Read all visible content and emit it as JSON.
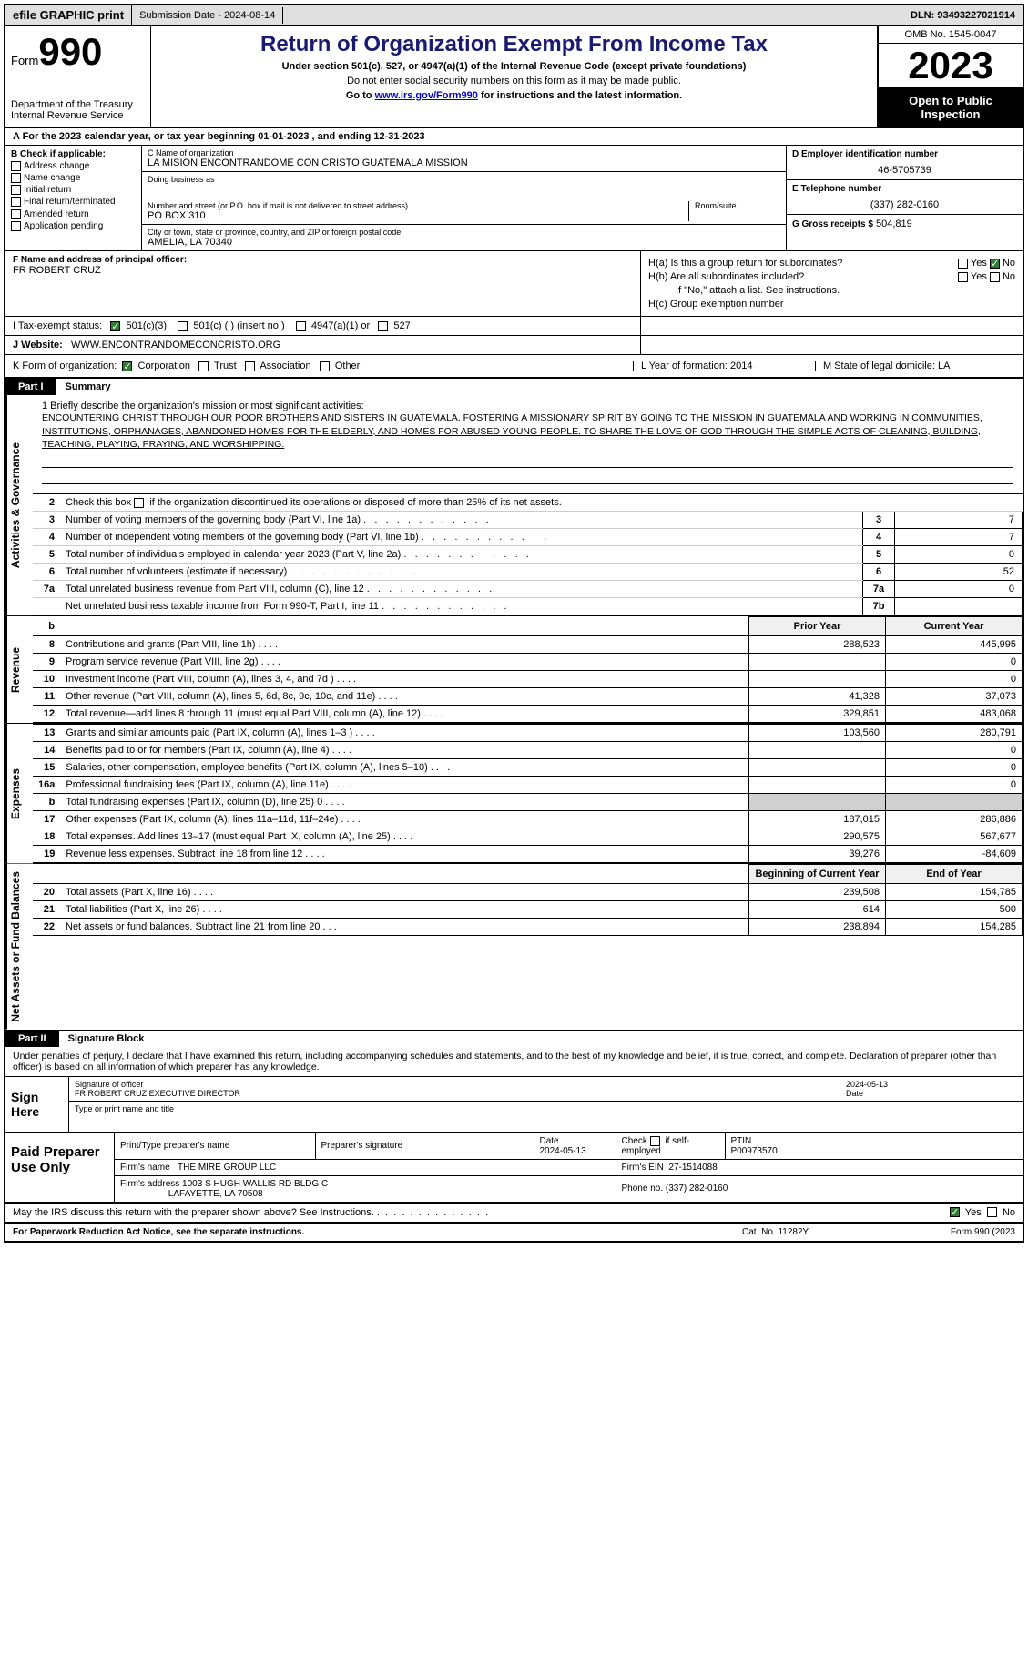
{
  "top_bar": {
    "efile": "efile GRAPHIC print",
    "submission": "Submission Date - 2024-08-14",
    "dln": "DLN: 93493227021914"
  },
  "header": {
    "form_word": "Form",
    "form_num": "990",
    "dept": "Department of the Treasury Internal Revenue Service",
    "title": "Return of Organization Exempt From Income Tax",
    "subtitle": "Under section 501(c), 527, or 4947(a)(1) of the Internal Revenue Code (except private foundations)",
    "subtitle2": "Do not enter social security numbers on this form as it may be made public.",
    "goto": "Go to www.irs.gov/Form990 for instructions and the latest information.",
    "goto_link": "www.irs.gov/Form990",
    "omb": "OMB No. 1545-0047",
    "year": "2023",
    "inspection": "Open to Public Inspection"
  },
  "line_a": "A For the 2023 calendar year, or tax year beginning 01-01-2023   , and ending 12-31-2023",
  "col_b": {
    "label": "B Check if applicable:",
    "opts": [
      "Address change",
      "Name change",
      "Initial return",
      "Final return/terminated",
      "Amended return",
      "Application pending"
    ]
  },
  "col_c": {
    "name_label": "C Name of organization",
    "name": "LA MISION ENCONTRANDOME CON CRISTO GUATEMALA MISSION",
    "dba_label": "Doing business as",
    "addr_label": "Number and street (or P.O. box if mail is not delivered to street address)",
    "addr": "PO BOX 310",
    "room_label": "Room/suite",
    "city_label": "City or town, state or province, country, and ZIP or foreign postal code",
    "city": "AMELIA, LA   70340"
  },
  "col_d": {
    "ein_label": "D Employer identification number",
    "ein": "46-5705739",
    "phone_label": "E Telephone number",
    "phone": "(337) 282-0160",
    "gross_label": "G Gross receipts $",
    "gross": "504,819"
  },
  "fg": {
    "f_label": "F Name and address of principal officer:",
    "f_name": "FR ROBERT CRUZ",
    "ha": "H(a)  Is this a group return for subordinates?",
    "hb": "H(b)  Are all subordinates included?",
    "hb_note": "If \"No,\" attach a list. See instructions.",
    "hc": "H(c)  Group exemption number",
    "yes": "Yes",
    "no": "No"
  },
  "status": {
    "label": "I   Tax-exempt status:",
    "o1": "501(c)(3)",
    "o2": "501(c) (  ) (insert no.)",
    "o3": "4947(a)(1) or",
    "o4": "527"
  },
  "website": {
    "label": "J   Website:",
    "url": "WWW.ENCONTRANDOMECONCRISTO.ORG"
  },
  "k_row": {
    "label": "K Form of organization:",
    "opts": [
      "Corporation",
      "Trust",
      "Association",
      "Other"
    ],
    "l": "L Year of formation: 2014",
    "m": "M State of legal domicile: LA"
  },
  "part1": {
    "num": "Part I",
    "title": "Summary"
  },
  "mission": {
    "intro": "1   Briefly describe the organization's mission or most significant activities:",
    "text": "ENCOUNTERING CHRIST THROUGH OUR POOR BROTHERS AND SISTERS IN GUATEMALA. FOSTERING A MISSIONARY SPIRIT BY GOING TO THE MISSION IN GUATEMALA AND WORKING IN COMMUNITIES, INSTITUTIONS, ORPHANAGES, ABANDONED HOMES FOR THE ELDERLY, AND HOMES FOR ABUSED YOUNG PEOPLE. TO SHARE THE LOVE OF GOD THROUGH THE SIMPLE ACTS OF CLEANING, BUILDING, TEACHING, PLAYING, PRAYING, AND WORSHIPPING."
  },
  "side_labels": {
    "gov": "Activities & Governance",
    "rev": "Revenue",
    "exp": "Expenses",
    "net": "Net Assets or Fund Balances"
  },
  "gov_lines": {
    "l2": "Check this box        if the organization discontinued its operations or disposed of more than 25% of its net assets.",
    "l3": {
      "n": "3",
      "t": "Number of voting members of the governing body (Part VI, line 1a)",
      "b": "3",
      "v": "7"
    },
    "l4": {
      "n": "4",
      "t": "Number of independent voting members of the governing body (Part VI, line 1b)",
      "b": "4",
      "v": "7"
    },
    "l5": {
      "n": "5",
      "t": "Total number of individuals employed in calendar year 2023 (Part V, line 2a)",
      "b": "5",
      "v": "0"
    },
    "l6": {
      "n": "6",
      "t": "Total number of volunteers (estimate if necessary)",
      "b": "6",
      "v": "52"
    },
    "l7a": {
      "n": "7a",
      "t": "Total unrelated business revenue from Part VIII, column (C), line 12",
      "b": "7a",
      "v": "0"
    },
    "l7b": {
      "n": "",
      "t": "Net unrelated business taxable income from Form 990-T, Part I, line 11",
      "b": "7b",
      "v": ""
    }
  },
  "year_headers": {
    "b": "b",
    "prior": "Prior Year",
    "current": "Current Year"
  },
  "rev_lines": [
    {
      "n": "8",
      "t": "Contributions and grants (Part VIII, line 1h)",
      "p": "288,523",
      "c": "445,995"
    },
    {
      "n": "9",
      "t": "Program service revenue (Part VIII, line 2g)",
      "p": "",
      "c": "0"
    },
    {
      "n": "10",
      "t": "Investment income (Part VIII, column (A), lines 3, 4, and 7d )",
      "p": "",
      "c": "0"
    },
    {
      "n": "11",
      "t": "Other revenue (Part VIII, column (A), lines 5, 6d, 8c, 9c, 10c, and 11e)",
      "p": "41,328",
      "c": "37,073"
    },
    {
      "n": "12",
      "t": "Total revenue—add lines 8 through 11 (must equal Part VIII, column (A), line 12)",
      "p": "329,851",
      "c": "483,068"
    }
  ],
  "exp_lines": [
    {
      "n": "13",
      "t": "Grants and similar amounts paid (Part IX, column (A), lines 1–3 )",
      "p": "103,560",
      "c": "280,791"
    },
    {
      "n": "14",
      "t": "Benefits paid to or for members (Part IX, column (A), line 4)",
      "p": "",
      "c": "0"
    },
    {
      "n": "15",
      "t": "Salaries, other compensation, employee benefits (Part IX, column (A), lines 5–10)",
      "p": "",
      "c": "0"
    },
    {
      "n": "16a",
      "t": "Professional fundraising fees (Part IX, column (A), line 11e)",
      "p": "",
      "c": "0"
    },
    {
      "n": "b",
      "t": "Total fundraising expenses (Part IX, column (D), line 25) 0",
      "p": "SHADE",
      "c": "SHADE"
    },
    {
      "n": "17",
      "t": "Other expenses (Part IX, column (A), lines 11a–11d, 11f–24e)",
      "p": "187,015",
      "c": "286,886"
    },
    {
      "n": "18",
      "t": "Total expenses. Add lines 13–17 (must equal Part IX, column (A), line 25)",
      "p": "290,575",
      "c": "567,677"
    },
    {
      "n": "19",
      "t": "Revenue less expenses. Subtract line 18 from line 12",
      "p": "39,276",
      "c": "-84,609"
    }
  ],
  "net_headers": {
    "begin": "Beginning of Current Year",
    "end": "End of Year"
  },
  "net_lines": [
    {
      "n": "20",
      "t": "Total assets (Part X, line 16)",
      "p": "239,508",
      "c": "154,785"
    },
    {
      "n": "21",
      "t": "Total liabilities (Part X, line 26)",
      "p": "614",
      "c": "500"
    },
    {
      "n": "22",
      "t": "Net assets or fund balances. Subtract line 21 from line 20",
      "p": "238,894",
      "c": "154,285"
    }
  ],
  "part2": {
    "num": "Part II",
    "title": "Signature Block"
  },
  "penalty": "Under penalties of perjury, I declare that I have examined this return, including accompanying schedules and statements, and to the best of my knowledge and belief, it is true, correct, and complete. Declaration of preparer (other than officer) is based on all information of which preparer has any knowledge.",
  "sign": {
    "label": "Sign Here",
    "sig_label": "Signature of officer",
    "date_label": "Date",
    "date": "2024-05-13",
    "name": "FR ROBERT CRUZ  EXECUTIVE DIRECTOR",
    "name_label": "Type or print name and title"
  },
  "prep": {
    "label": "Paid Preparer Use Only",
    "h1": "Print/Type preparer's name",
    "h2": "Preparer's signature",
    "h3": "Date",
    "date": "2024-05-13",
    "h4": "Check        if self-employed",
    "h5": "PTIN",
    "ptin": "P00973570",
    "firm_label": "Firm's name",
    "firm": "THE MIRE GROUP LLC",
    "firm_ein_label": "Firm's EIN",
    "firm_ein": "27-1514088",
    "firm_addr_label": "Firm's address",
    "firm_addr": "1003 S HUGH WALLIS RD BLDG C",
    "firm_city": "LAFAYETTE, LA   70508",
    "phone_label": "Phone no.",
    "phone": "(337) 282-0160"
  },
  "discuss": "May the IRS discuss this return with the preparer shown above? See Instructions.",
  "footer": {
    "l": "For Paperwork Reduction Act Notice, see the separate instructions.",
    "m": "Cat. No. 11282Y",
    "r": "Form 990 (2023"
  },
  "colors": {
    "title": "#1a1a6e",
    "check_green": "#2e7d32",
    "shade": "#d0d0d0"
  }
}
